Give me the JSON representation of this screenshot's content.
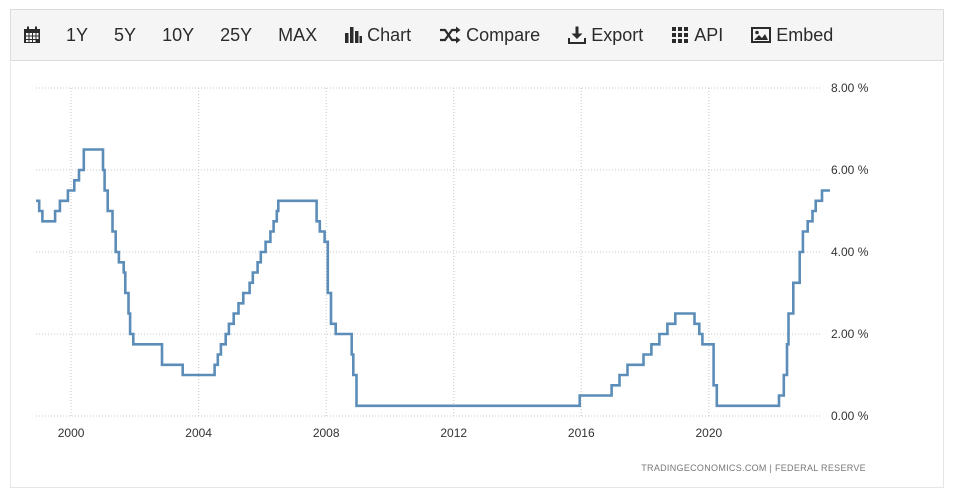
{
  "toolbar": {
    "ranges": [
      "1Y",
      "5Y",
      "10Y",
      "25Y",
      "MAX"
    ],
    "chart_label": "Chart",
    "compare_label": "Compare",
    "export_label": "Export",
    "api_label": "API",
    "embed_label": "Embed"
  },
  "source_credit": "TRADINGECONOMICS.COM  |  FEDERAL RESERVE",
  "colors": {
    "line": "#5b8db8",
    "grid": "#c8c8c8",
    "toolbar_bg": "#f5f5f5"
  },
  "chart_data": {
    "type": "line",
    "title": "",
    "xlabel": "",
    "ylabel": "",
    "x_ticks": [
      "2000",
      "2004",
      "2008",
      "2012",
      "2016",
      "2020"
    ],
    "y_ticks": [
      "0.00 %",
      "2.00 %",
      "4.00 %",
      "6.00 %",
      "8.00 %"
    ],
    "xlim": [
      1998.9,
      2023.8
    ],
    "ylim": [
      0,
      8
    ],
    "grid": true,
    "step": true,
    "series": [
      {
        "name": "",
        "points": [
          [
            1998.9,
            5.25
          ],
          [
            1999.0,
            5.0
          ],
          [
            1999.1,
            4.75
          ],
          [
            1999.5,
            5.0
          ],
          [
            1999.65,
            5.25
          ],
          [
            1999.9,
            5.5
          ],
          [
            2000.1,
            5.75
          ],
          [
            2000.25,
            6.0
          ],
          [
            2000.4,
            6.5
          ],
          [
            2001.0,
            6.0
          ],
          [
            2001.05,
            5.5
          ],
          [
            2001.15,
            5.0
          ],
          [
            2001.3,
            4.5
          ],
          [
            2001.4,
            4.0
          ],
          [
            2001.5,
            3.75
          ],
          [
            2001.65,
            3.5
          ],
          [
            2001.7,
            3.0
          ],
          [
            2001.8,
            2.5
          ],
          [
            2001.85,
            2.0
          ],
          [
            2001.95,
            1.75
          ],
          [
            2002.85,
            1.25
          ],
          [
            2003.5,
            1.0
          ],
          [
            2004.5,
            1.25
          ],
          [
            2004.6,
            1.5
          ],
          [
            2004.7,
            1.75
          ],
          [
            2004.85,
            2.0
          ],
          [
            2004.95,
            2.25
          ],
          [
            2005.1,
            2.5
          ],
          [
            2005.25,
            2.75
          ],
          [
            2005.4,
            3.0
          ],
          [
            2005.6,
            3.25
          ],
          [
            2005.7,
            3.5
          ],
          [
            2005.85,
            3.75
          ],
          [
            2005.95,
            4.0
          ],
          [
            2006.1,
            4.25
          ],
          [
            2006.25,
            4.5
          ],
          [
            2006.35,
            4.75
          ],
          [
            2006.45,
            5.0
          ],
          [
            2006.5,
            5.25
          ],
          [
            2007.7,
            4.75
          ],
          [
            2007.8,
            4.5
          ],
          [
            2007.95,
            4.25
          ],
          [
            2008.05,
            3.0
          ],
          [
            2008.15,
            2.25
          ],
          [
            2008.3,
            2.0
          ],
          [
            2008.8,
            1.5
          ],
          [
            2008.85,
            1.0
          ],
          [
            2008.95,
            0.25
          ],
          [
            2015.95,
            0.5
          ],
          [
            2016.95,
            0.75
          ],
          [
            2017.2,
            1.0
          ],
          [
            2017.45,
            1.25
          ],
          [
            2017.95,
            1.5
          ],
          [
            2018.2,
            1.75
          ],
          [
            2018.45,
            2.0
          ],
          [
            2018.7,
            2.25
          ],
          [
            2018.95,
            2.5
          ],
          [
            2019.55,
            2.25
          ],
          [
            2019.7,
            2.0
          ],
          [
            2019.8,
            1.75
          ],
          [
            2020.15,
            0.75
          ],
          [
            2020.25,
            0.25
          ],
          [
            2022.2,
            0.5
          ],
          [
            2022.35,
            1.0
          ],
          [
            2022.45,
            1.75
          ],
          [
            2022.5,
            2.5
          ],
          [
            2022.65,
            3.25
          ],
          [
            2022.85,
            4.0
          ],
          [
            2022.95,
            4.5
          ],
          [
            2023.1,
            4.75
          ],
          [
            2023.25,
            5.0
          ],
          [
            2023.35,
            5.25
          ],
          [
            2023.55,
            5.5
          ],
          [
            2023.8,
            5.5
          ]
        ]
      }
    ]
  }
}
